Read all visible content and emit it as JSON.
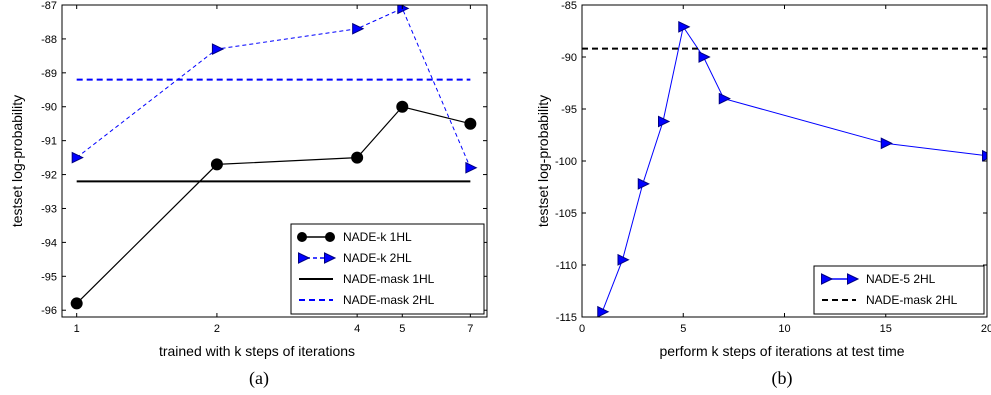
{
  "chart_data": [
    {
      "type": "line",
      "caption": "(a)",
      "xlabel": "trained with k steps of iterations",
      "ylabel": "testset log-probability",
      "x_scale": "log2",
      "xlim": [
        0.93,
        7.6
      ],
      "ylim": [
        -96.2,
        -87.0
      ],
      "x_ticks": [
        1,
        2,
        4,
        5,
        7
      ],
      "x_tick_labels": [
        "1",
        "2",
        "4",
        "5",
        "7"
      ],
      "y_ticks": [
        -96,
        -95,
        -94,
        -93,
        -92,
        -91,
        -90,
        -89,
        -88,
        -87
      ],
      "y_tick_labels": [
        "-96",
        "-95",
        "-94",
        "-93",
        "-92",
        "-91",
        "-90",
        "-89",
        "-88",
        "-87"
      ],
      "grid": false,
      "legend_position": "lower-right",
      "series": [
        {
          "name": "NADE-k 1HL",
          "style": "line-circle",
          "color": "#000000",
          "x": [
            1,
            2,
            4,
            5,
            7
          ],
          "y": [
            -95.8,
            -91.7,
            -91.5,
            -90.0,
            -90.5
          ]
        },
        {
          "name": "NADE-k 2HL",
          "style": "dashed-triangle",
          "color": "#0000ff",
          "x": [
            1,
            2,
            4,
            5,
            7
          ],
          "y": [
            -91.5,
            -88.3,
            -87.7,
            -87.1,
            -91.8
          ]
        },
        {
          "name": "NADE-mask 1HL",
          "style": "solid-hline",
          "color": "#000000",
          "x": [
            1,
            7
          ],
          "y": [
            -92.2,
            -92.2
          ]
        },
        {
          "name": "NADE-mask 2HL",
          "style": "dashed-hline",
          "color": "#0000ff",
          "x": [
            1,
            7
          ],
          "y": [
            -89.2,
            -89.2
          ]
        }
      ]
    },
    {
      "type": "line",
      "caption": "(b)",
      "xlabel": "perform k steps of iterations at test time",
      "ylabel": "testset log-probability",
      "x_scale": "linear",
      "xlim": [
        0,
        20
      ],
      "ylim": [
        -115,
        -85
      ],
      "x_ticks": [
        0,
        5,
        10,
        15,
        20
      ],
      "x_tick_labels": [
        "0",
        "5",
        "10",
        "15",
        "20"
      ],
      "y_ticks": [
        -115,
        -110,
        -105,
        -100,
        -95,
        -90,
        -85
      ],
      "y_tick_labels": [
        "-115",
        "-110",
        "-105",
        "-100",
        "-95",
        "-90",
        "-85"
      ],
      "grid": false,
      "legend_position": "lower-right",
      "series": [
        {
          "name": "NADE-5 2HL",
          "style": "solid-triangle",
          "color": "#0000ff",
          "x": [
            1,
            2,
            3,
            4,
            5,
            6,
            7,
            15,
            20
          ],
          "y": [
            -114.5,
            -109.5,
            -102.2,
            -96.2,
            -87.1,
            -90.0,
            -94.0,
            -98.3,
            -99.5
          ]
        },
        {
          "name": "NADE-mask 2HL",
          "style": "dashed-hline-black",
          "color": "#000000",
          "x": [
            0,
            20
          ],
          "y": [
            -89.2,
            -89.2
          ]
        }
      ]
    }
  ]
}
